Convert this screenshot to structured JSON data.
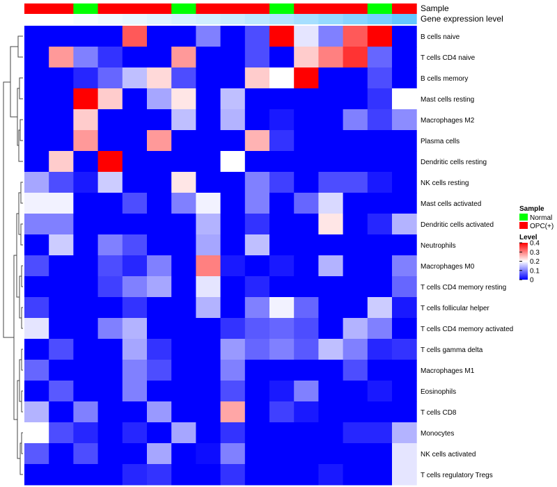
{
  "chart_data": {
    "type": "heatmap",
    "annotation_tracks": [
      "Sample",
      "Gene expression level"
    ],
    "legend": {
      "sample_title": "Sample",
      "sample_entries": [
        {
          "label": "Normal",
          "color": "#00ff00"
        },
        {
          "label": "OPC(+)",
          "color": "#ff0000"
        }
      ],
      "level_title": "Level",
      "level_ticks": [
        "0.4",
        "0.3",
        "0.2",
        "0.1",
        "0"
      ],
      "scale_colors": {
        "low": "#0000ff",
        "mid": "#ffffff",
        "high": "#ff0000"
      },
      "scale_range": [
        0,
        0.4
      ]
    },
    "sample_groups": [
      "OPC(+)",
      "OPC(+)",
      "Normal",
      "OPC(+)",
      "OPC(+)",
      "OPC(+)",
      "Normal",
      "OPC(+)",
      "OPC(+)",
      "OPC(+)",
      "Normal",
      "OPC(+)",
      "OPC(+)",
      "OPC(+)",
      "Normal",
      "OPC(+)"
    ],
    "expression_track": [
      0.0,
      0.0,
      0.02,
      0.04,
      0.06,
      0.08,
      0.1,
      0.12,
      0.14,
      0.17,
      0.2,
      0.23,
      0.27,
      0.31,
      0.35,
      0.4
    ],
    "rows": [
      "B cells naive",
      "T cells CD4 naive",
      "B cells memory",
      "Mast cells resting",
      "Macrophages M2",
      "Plasma cells",
      "Dendritic cells resting",
      "NK cells resting",
      "Mast cells activated",
      "Dendritic cells activated",
      "Neutrophils",
      "Macrophages M0",
      "T cells CD4 memory resting",
      "T cells follicular helper",
      "T cells CD4 memory activated",
      "T cells gamma delta",
      "Macrophages M1",
      "Eosinophils",
      "T cells CD8",
      "Monocytes",
      "NK cells activated",
      "T cells regulatory  Tregs"
    ],
    "values": [
      [
        0.0,
        0.0,
        0.0,
        0.0,
        0.33,
        0.0,
        0.0,
        0.1,
        0.0,
        0.06,
        0.4,
        0.18,
        0.1,
        0.33,
        0.4,
        0.0
      ],
      [
        0.0,
        0.28,
        0.1,
        0.04,
        0.0,
        0.0,
        0.28,
        0.0,
        0.0,
        0.06,
        0.0,
        0.24,
        0.3,
        0.36,
        0.08,
        0.0
      ],
      [
        0.0,
        0.0,
        0.03,
        0.08,
        0.15,
        0.23,
        0.06,
        0.0,
        0.0,
        0.24,
        0.2,
        0.4,
        0.0,
        0.0,
        0.06,
        0.0
      ],
      [
        0.0,
        0.0,
        0.4,
        0.24,
        0.0,
        0.13,
        0.22,
        0.0,
        0.15,
        0.0,
        0.0,
        0.0,
        0.0,
        0.0,
        0.04,
        0.2
      ],
      [
        0.0,
        0.0,
        0.24,
        0.0,
        0.0,
        0.0,
        0.15,
        0.0,
        0.14,
        0.0,
        0.02,
        0.0,
        0.0,
        0.1,
        0.05,
        0.11
      ],
      [
        0.0,
        0.0,
        0.28,
        0.0,
        0.0,
        0.28,
        0.0,
        0.0,
        0.0,
        0.26,
        0.04,
        0.0,
        0.0,
        0.0,
        0.0,
        0.0
      ],
      [
        0.0,
        0.24,
        0.0,
        0.4,
        0.0,
        0.0,
        0.0,
        0.0,
        0.2,
        0.0,
        0.0,
        0.0,
        0.0,
        0.0,
        0.0,
        0.0
      ],
      [
        0.13,
        0.06,
        0.02,
        0.16,
        0.0,
        0.0,
        0.22,
        0.0,
        0.0,
        0.1,
        0.05,
        0.0,
        0.06,
        0.06,
        0.02,
        0.0
      ],
      [
        0.19,
        0.19,
        0.0,
        0.0,
        0.06,
        0.0,
        0.1,
        0.19,
        0.0,
        0.1,
        0.0,
        0.08,
        0.17,
        0.0,
        0.0,
        0.0
      ],
      [
        0.1,
        0.1,
        0.0,
        0.0,
        0.0,
        0.0,
        0.0,
        0.14,
        0.0,
        0.04,
        0.0,
        0.0,
        0.22,
        0.0,
        0.03,
        0.14
      ],
      [
        0.0,
        0.16,
        0.0,
        0.1,
        0.06,
        0.0,
        0.0,
        0.13,
        0.0,
        0.15,
        0.0,
        0.0,
        0.0,
        0.0,
        0.0,
        0.0
      ],
      [
        0.06,
        0.0,
        0.0,
        0.06,
        0.03,
        0.1,
        0.0,
        0.3,
        0.02,
        0.0,
        0.02,
        0.0,
        0.14,
        0.0,
        0.0,
        0.1
      ],
      [
        0.0,
        0.0,
        0.0,
        0.05,
        0.1,
        0.13,
        0.0,
        0.18,
        0.0,
        0.03,
        0.0,
        0.0,
        0.0,
        0.0,
        0.0,
        0.08
      ],
      [
        0.05,
        0.0,
        0.0,
        0.0,
        0.04,
        0.0,
        0.0,
        0.14,
        0.0,
        0.1,
        0.19,
        0.08,
        0.0,
        0.0,
        0.16,
        0.02
      ],
      [
        0.18,
        0.0,
        0.0,
        0.1,
        0.14,
        0.0,
        0.0,
        0.0,
        0.04,
        0.07,
        0.08,
        0.06,
        0.0,
        0.14,
        0.1,
        0.0
      ],
      [
        0.0,
        0.06,
        0.0,
        0.0,
        0.13,
        0.04,
        0.0,
        0.0,
        0.12,
        0.08,
        0.1,
        0.07,
        0.15,
        0.1,
        0.03,
        0.04
      ],
      [
        0.08,
        0.0,
        0.0,
        0.0,
        0.1,
        0.06,
        0.0,
        0.0,
        0.1,
        0.0,
        0.0,
        0.0,
        0.0,
        0.06,
        0.0,
        0.0
      ],
      [
        0.0,
        0.07,
        0.0,
        0.0,
        0.1,
        0.0,
        0.0,
        0.0,
        0.06,
        0.0,
        0.02,
        0.1,
        0.0,
        0.0,
        0.02,
        0.0
      ],
      [
        0.14,
        0.0,
        0.1,
        0.0,
        0.0,
        0.12,
        0.0,
        0.0,
        0.27,
        0.0,
        0.05,
        0.02,
        0.0,
        0.0,
        0.0,
        0.0
      ],
      [
        0.2,
        0.06,
        0.03,
        0.0,
        0.03,
        0.0,
        0.13,
        0.0,
        0.04,
        0.0,
        0.0,
        0.0,
        0.0,
        0.03,
        0.03,
        0.14
      ],
      [
        0.07,
        0.0,
        0.06,
        0.0,
        0.0,
        0.13,
        0.0,
        0.01,
        0.1,
        0.0,
        0.0,
        0.0,
        0.0,
        0.0,
        0.0,
        0.18
      ],
      [
        0.0,
        0.0,
        0.0,
        0.0,
        0.03,
        0.04,
        0.0,
        0.0,
        0.04,
        0.0,
        0.0,
        0.0,
        0.02,
        0.0,
        0.0,
        0.18
      ]
    ]
  }
}
